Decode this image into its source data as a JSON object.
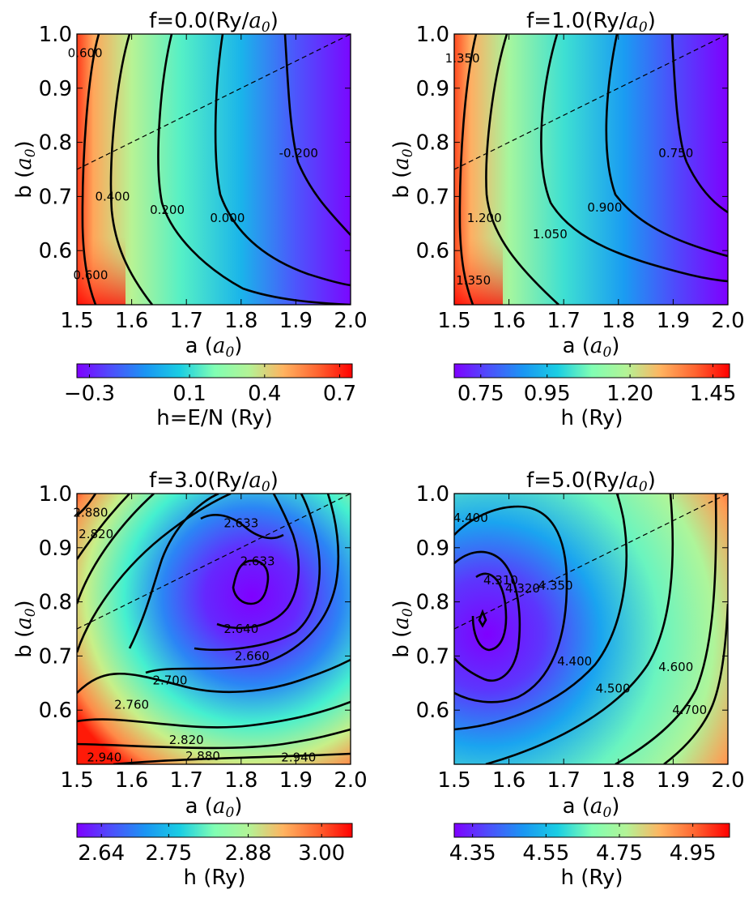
{
  "chart_data": [
    {
      "type": "heatmap",
      "title": "f=0.0(Ry/a0)",
      "title_prefix": "f=0.0(Ry/",
      "title_suffix": ")",
      "xlabel": "a (a0)",
      "ylabel": "b (a0)",
      "xlim": [
        1.5,
        2.0
      ],
      "ylim": [
        0.5,
        1.0
      ],
      "xticks": [
        "1.5",
        "1.6",
        "1.7",
        "1.8",
        "1.9",
        "2.0"
      ],
      "yticks": [
        "0.6",
        "0.7",
        "0.8",
        "0.9",
        "1.0"
      ],
      "guide_line": {
        "from": [
          1.5,
          0.75
        ],
        "to": [
          2.0,
          1.0
        ]
      },
      "contour_labels": [
        {
          "text": "0.600",
          "a": 1.515,
          "b": 0.965
        },
        {
          "text": "0.400",
          "a": 1.565,
          "b": 0.7
        },
        {
          "text": "0.200",
          "a": 1.665,
          "b": 0.675
        },
        {
          "text": "0.000",
          "a": 1.775,
          "b": 0.66
        },
        {
          "text": "-0.200",
          "a": 1.905,
          "b": 0.78
        },
        {
          "text": "0.600",
          "a": 1.525,
          "b": 0.555
        }
      ],
      "colorbar": {
        "label": "h=E/N (Ry)",
        "range": [
          -0.35,
          0.75
        ],
        "ticks": [
          {
            "label": "−0.3",
            "value": -0.3
          },
          {
            "label": "0.1",
            "value": 0.1
          },
          {
            "label": "0.4",
            "value": 0.4
          },
          {
            "label": "0.7",
            "value": 0.7
          }
        ]
      }
    },
    {
      "type": "heatmap",
      "title": "f=1.0(Ry/a0)",
      "title_prefix": "f=1.0(Ry/",
      "title_suffix": ")",
      "xlabel": "a (a0)",
      "ylabel": "b (a0)",
      "xlim": [
        1.5,
        2.0
      ],
      "ylim": [
        0.5,
        1.0
      ],
      "xticks": [
        "1.5",
        "1.6",
        "1.7",
        "1.8",
        "1.9",
        "2.0"
      ],
      "yticks": [
        "0.6",
        "0.7",
        "0.8",
        "0.9",
        "1.0"
      ],
      "guide_line": {
        "from": [
          1.5,
          0.75
        ],
        "to": [
          2.0,
          1.0
        ]
      },
      "contour_labels": [
        {
          "text": "1.350",
          "a": 1.515,
          "b": 0.955
        },
        {
          "text": "1.200",
          "a": 1.555,
          "b": 0.66
        },
        {
          "text": "1.050",
          "a": 1.675,
          "b": 0.63
        },
        {
          "text": "0.900",
          "a": 1.775,
          "b": 0.68
        },
        {
          "text": "0.750",
          "a": 1.905,
          "b": 0.78
        },
        {
          "text": "1.350",
          "a": 1.535,
          "b": 0.545
        }
      ],
      "colorbar": {
        "label": "h (Ry)",
        "range": [
          0.67,
          1.5
        ],
        "ticks": [
          {
            "label": "0.75",
            "value": 0.75
          },
          {
            "label": "0.95",
            "value": 0.95
          },
          {
            "label": "1.20",
            "value": 1.2
          },
          {
            "label": "1.45",
            "value": 1.45
          }
        ]
      }
    },
    {
      "type": "heatmap",
      "title": "f=3.0(Ry/a0)",
      "title_prefix": "f=3.0(Ry/",
      "title_suffix": ")",
      "xlabel": "a (a0)",
      "ylabel": "b (a0)",
      "xlim": [
        1.5,
        2.0
      ],
      "ylim": [
        0.5,
        1.0
      ],
      "xticks": [
        "1.5",
        "1.6",
        "1.7",
        "1.8",
        "1.9",
        "2.0"
      ],
      "yticks": [
        "0.6",
        "0.7",
        "0.8",
        "0.9",
        "1.0"
      ],
      "guide_line": {
        "from": [
          1.5,
          0.75
        ],
        "to": [
          2.0,
          1.0
        ]
      },
      "contour_labels": [
        {
          "text": "2.880",
          "a": 1.525,
          "b": 0.965
        },
        {
          "text": "2.820",
          "a": 1.535,
          "b": 0.925
        },
        {
          "text": "2.633",
          "a": 1.8,
          "b": 0.945
        },
        {
          "text": "2.633",
          "a": 1.83,
          "b": 0.875
        },
        {
          "text": "2.640",
          "a": 1.8,
          "b": 0.75
        },
        {
          "text": "2.660",
          "a": 1.82,
          "b": 0.7
        },
        {
          "text": "2.700",
          "a": 1.67,
          "b": 0.655
        },
        {
          "text": "2.760",
          "a": 1.6,
          "b": 0.61
        },
        {
          "text": "2.820",
          "a": 1.7,
          "b": 0.545
        },
        {
          "text": "2.880",
          "a": 1.73,
          "b": 0.515
        },
        {
          "text": "2.940",
          "a": 1.55,
          "b": 0.513
        },
        {
          "text": "2.940",
          "a": 1.905,
          "b": 0.513
        }
      ],
      "colorbar": {
        "label": "h (Ry)",
        "range": [
          2.6,
          3.05
        ],
        "ticks": [
          {
            "label": "2.64",
            "value": 2.64
          },
          {
            "label": "2.75",
            "value": 2.75
          },
          {
            "label": "2.88",
            "value": 2.88
          },
          {
            "label": "3.00",
            "value": 3.0
          }
        ]
      }
    },
    {
      "type": "heatmap",
      "title": "f=5.0(Ry/a0)",
      "title_prefix": "f=5.0(Ry/",
      "title_suffix": ")",
      "xlabel": "a (a0)",
      "ylabel": "b (a0)",
      "xlim": [
        1.5,
        2.0
      ],
      "ylim": [
        0.5,
        1.0
      ],
      "xticks": [
        "1.5",
        "1.6",
        "1.7",
        "1.8",
        "1.9",
        "2.0"
      ],
      "yticks": [
        "0.6",
        "0.7",
        "0.8",
        "0.9",
        "1.0"
      ],
      "guide_line": {
        "from": [
          1.5,
          0.75
        ],
        "to": [
          2.0,
          1.0
        ]
      },
      "contour_labels": [
        {
          "text": "4.400",
          "a": 1.53,
          "b": 0.955
        },
        {
          "text": "4.310",
          "a": 1.585,
          "b": 0.84
        },
        {
          "text": "4.320",
          "a": 1.625,
          "b": 0.825
        },
        {
          "text": "4.350",
          "a": 1.685,
          "b": 0.83
        },
        {
          "text": "4.400",
          "a": 1.72,
          "b": 0.69
        },
        {
          "text": "4.500",
          "a": 1.79,
          "b": 0.64
        },
        {
          "text": "4.600",
          "a": 1.905,
          "b": 0.68
        },
        {
          "text": "4.700",
          "a": 1.93,
          "b": 0.6
        }
      ],
      "colorbar": {
        "label": "h (Ry)",
        "range": [
          4.3,
          5.05
        ],
        "ticks": [
          {
            "label": "4.35",
            "value": 4.35
          },
          {
            "label": "4.55",
            "value": 4.55
          },
          {
            "label": "4.75",
            "value": 4.75
          },
          {
            "label": "4.95",
            "value": 4.95
          }
        ]
      }
    }
  ]
}
